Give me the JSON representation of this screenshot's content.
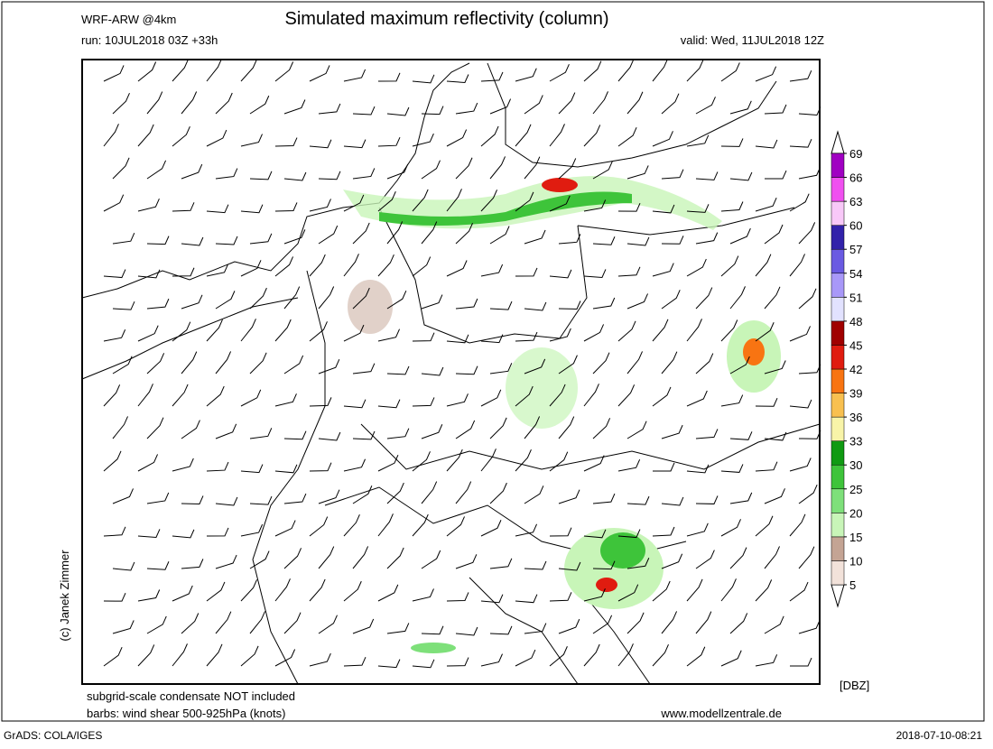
{
  "header": {
    "model": "WRF-ARW @4km",
    "title": "Simulated maximum reflectivity (column)",
    "run": "run: 10JUL2018 03Z +33h",
    "valid": "valid: Wed, 11JUL2018 12Z"
  },
  "colorbar": {
    "unit": "[DBZ]",
    "levels": [
      5,
      10,
      15,
      20,
      25,
      30,
      33,
      36,
      39,
      42,
      45,
      48,
      51,
      54,
      57,
      60,
      63,
      66,
      69
    ],
    "colors": [
      "#f2e2da",
      "#c4a494",
      "#c8f5b8",
      "#7ee07a",
      "#3ec43a",
      "#0f9a12",
      "#f8f4a8",
      "#f8c050",
      "#f87412",
      "#e01c10",
      "#a00000",
      "#e2e2ff",
      "#a898f8",
      "#6a5ae2",
      "#3222aa",
      "#f8c8f8",
      "#f050f0",
      "#a000c2"
    ]
  },
  "credit": "(c) Janek Zimmer",
  "footer": {
    "note": "subgrid-scale condensate NOT included",
    "barbs": "barbs: wind shear 500-925hPa (knots)",
    "site": "www.modellzentrale.de",
    "software": "GrADS: COLA/IGES",
    "timestamp": "2018-07-10-08:21"
  }
}
